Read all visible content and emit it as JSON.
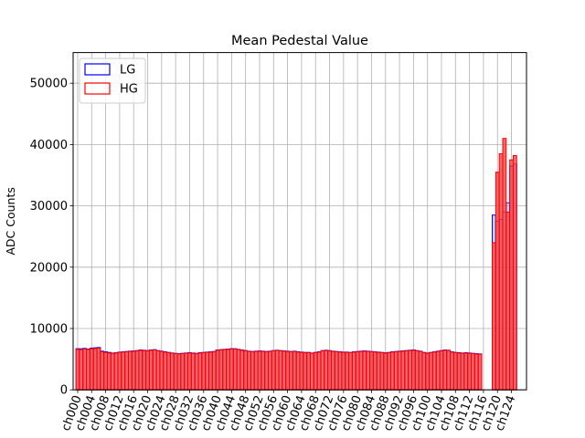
{
  "chart_data": {
    "type": "bar",
    "title": "Mean Pedestal Value",
    "xlabel": "",
    "ylabel": "ADC Counts",
    "ylim": [
      0,
      55000
    ],
    "yticks": [
      0,
      10000,
      20000,
      30000,
      40000,
      50000
    ],
    "ytick_labels": [
      "0",
      "10000",
      "20000",
      "30000",
      "40000",
      "50000"
    ],
    "grid": true,
    "legend_position": "top-left",
    "num_channels": 128,
    "xtick_step": 4,
    "xtick_labels": [
      "ch000",
      "ch004",
      "ch008",
      "ch012",
      "ch016",
      "ch020",
      "ch024",
      "ch028",
      "ch032",
      "ch036",
      "ch040",
      "ch044",
      "ch048",
      "ch052",
      "ch056",
      "ch060",
      "ch064",
      "ch068",
      "ch072",
      "ch076",
      "ch080",
      "ch084",
      "ch088",
      "ch092",
      "ch096",
      "ch100",
      "ch104",
      "ch108",
      "ch112",
      "ch116",
      "ch120",
      "ch124"
    ],
    "series": [
      {
        "name": "LG",
        "color": "#0000ff",
        "values": [
          6700,
          6700,
          6750,
          6650,
          6800,
          6850,
          6900,
          6300,
          6200,
          6100,
          6000,
          6050,
          6150,
          6200,
          6250,
          6300,
          6350,
          6400,
          6500,
          6450,
          6400,
          6500,
          6550,
          6400,
          6300,
          6200,
          6100,
          6000,
          5950,
          5900,
          5950,
          6000,
          6050,
          6000,
          5950,
          6050,
          6100,
          6150,
          6200,
          6250,
          6500,
          6550,
          6600,
          6650,
          6700,
          6700,
          6600,
          6500,
          6400,
          6300,
          6250,
          6300,
          6350,
          6300,
          6250,
          6300,
          6400,
          6450,
          6400,
          6350,
          6300,
          6250,
          6300,
          6200,
          6150,
          6100,
          6100,
          6000,
          6100,
          6200,
          6400,
          6450,
          6400,
          6300,
          6250,
          6200,
          6150,
          6150,
          6100,
          6200,
          6250,
          6300,
          6350,
          6300,
          6250,
          6200,
          6150,
          6100,
          6050,
          6100,
          6200,
          6250,
          6300,
          6350,
          6400,
          6450,
          6500,
          6400,
          6300,
          6100,
          6000,
          6100,
          6200,
          6300,
          6400,
          6500,
          6450,
          6200,
          6100,
          6050,
          6000,
          6050,
          6000,
          5950,
          5900,
          5850,
          0,
          0,
          0,
          28500,
          27500,
          27800,
          29000,
          30500,
          36500,
          36800,
          0,
          0
        ]
      },
      {
        "name": "HG",
        "color": "#ff0000",
        "values": [
          6600,
          6550,
          6650,
          6600,
          6700,
          6750,
          6800,
          6200,
          6100,
          6000,
          5950,
          6000,
          6100,
          6150,
          6200,
          6250,
          6300,
          6350,
          6450,
          6400,
          6350,
          6450,
          6500,
          6350,
          6250,
          6150,
          6050,
          5950,
          5900,
          5850,
          5900,
          5950,
          6000,
          5950,
          5900,
          6000,
          6050,
          6100,
          6150,
          6200,
          6450,
          6500,
          6550,
          6600,
          6650,
          6650,
          6550,
          6450,
          6350,
          6250,
          6200,
          6250,
          6300,
          6250,
          6200,
          6250,
          6350,
          6400,
          6350,
          6300,
          6250,
          6200,
          6250,
          6150,
          6100,
          6050,
          6050,
          5950,
          6050,
          6150,
          6350,
          6400,
          6350,
          6250,
          6200,
          6150,
          6100,
          6100,
          6050,
          6150,
          6200,
          6250,
          6300,
          6250,
          6200,
          6150,
          6100,
          6050,
          6000,
          6050,
          6150,
          6200,
          6250,
          6300,
          6350,
          6400,
          6450,
          6350,
          6250,
          6050,
          5950,
          6050,
          6150,
          6250,
          6350,
          6450,
          6400,
          6150,
          6050,
          6000,
          5950,
          6000,
          5950,
          5900,
          5850,
          5800,
          0,
          0,
          0,
          24000,
          35500,
          38500,
          41000,
          29000,
          37500,
          38200,
          0,
          0
        ]
      }
    ]
  }
}
